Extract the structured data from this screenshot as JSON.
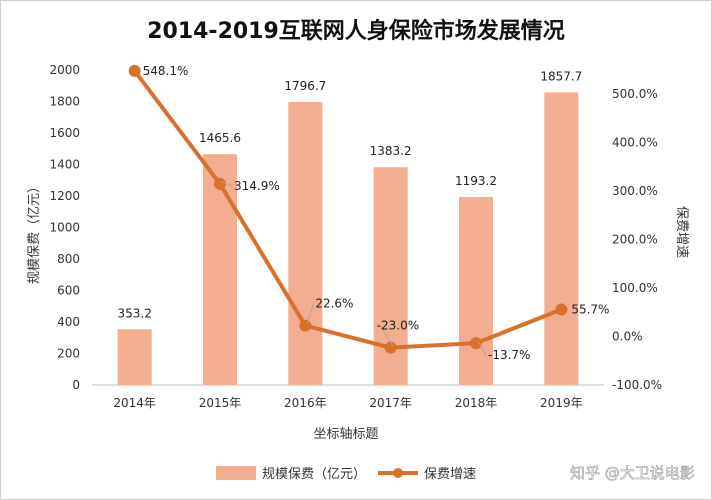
{
  "chart_data": {
    "type": "bar",
    "title": "2014-2019互联网人身保险市场发展情况",
    "categories": [
      "2014年",
      "2015年",
      "2016年",
      "2017年",
      "2018年",
      "2019年"
    ],
    "xlabel": "坐标轴标题",
    "ylabel": "规模保费（亿元）",
    "y2label": "保费增速",
    "ylim": [
      0,
      2000
    ],
    "y2lim": [
      -100,
      550
    ],
    "yticks": [
      "0",
      "200",
      "400",
      "600",
      "800",
      "1000",
      "1200",
      "1400",
      "1600",
      "1800",
      "2000"
    ],
    "y2ticks": [
      "-100.0%",
      "0.0%",
      "100.0%",
      "200.0%",
      "300.0%",
      "400.0%",
      "500.0%"
    ],
    "grid": false,
    "legend_position": "bottom",
    "series": [
      {
        "name": "规模保费（亿元）",
        "type": "bar",
        "axis": "left",
        "color": "#f2ae8f",
        "values": [
          353.2,
          1465.6,
          1796.7,
          1383.2,
          1193.2,
          1857.7
        ],
        "labels": [
          "353.2",
          "1465.6",
          "1796.7",
          "1383.2",
          "1193.2",
          "1857.7"
        ]
      },
      {
        "name": "保费增速",
        "type": "line",
        "axis": "right",
        "color": "#d9712c",
        "values": [
          548.1,
          314.9,
          22.6,
          -23.0,
          -13.7,
          55.7
        ],
        "labels": [
          "548.1%",
          "314.9%",
          "22.6%",
          "-23.0%",
          "-13.7%",
          "55.7%"
        ]
      }
    ]
  },
  "watermark": "知乎 @大卫说电影"
}
